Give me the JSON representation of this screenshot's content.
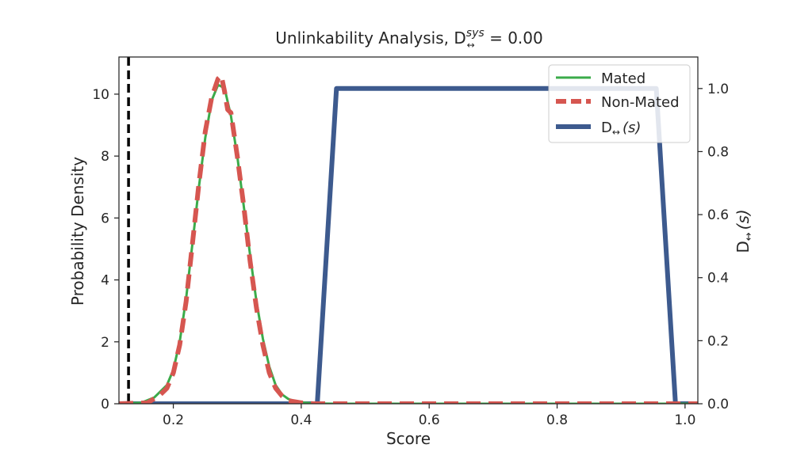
{
  "chart_data": {
    "type": "line",
    "title": "Unlinkability Analysis, D",
    "title_super": "sys",
    "title_sub": "↔",
    "title_value": " = 0.00",
    "xlabel": "Score",
    "ylabel": "Probability Density",
    "y2label": "D",
    "y2label_sub": "↔",
    "y2label_arg": "(s)",
    "xlim": [
      0.115,
      1.02
    ],
    "ylim": [
      0,
      11.2
    ],
    "y2lim": [
      0,
      1.1
    ],
    "xticks": [
      "0.2",
      "0.4",
      "0.6",
      "0.8",
      "1.0"
    ],
    "xtick_values": [
      0.2,
      0.4,
      0.6,
      0.8,
      1.0
    ],
    "yticks": [
      "0",
      "2",
      "4",
      "6",
      "8",
      "10"
    ],
    "ytick_values": [
      0,
      2,
      4,
      6,
      8,
      10
    ],
    "y2ticks": [
      "0.0",
      "0.2",
      "0.4",
      "0.6",
      "0.8",
      "1.0"
    ],
    "y2tick_values": [
      0.0,
      0.2,
      0.4,
      0.6,
      0.8,
      1.0
    ],
    "threshold_x": 0.13,
    "grid": false,
    "legend_position": "top-right",
    "series": [
      {
        "name": "Mated",
        "axis": "left",
        "color": "#3bab4a",
        "style": "solid",
        "x": [
          0.115,
          0.15,
          0.17,
          0.19,
          0.2,
          0.21,
          0.22,
          0.23,
          0.24,
          0.25,
          0.26,
          0.27,
          0.28,
          0.29,
          0.3,
          0.31,
          0.32,
          0.33,
          0.34,
          0.35,
          0.36,
          0.37,
          0.38,
          0.39,
          0.4,
          0.42,
          0.45,
          1.02
        ],
        "y": [
          0,
          0.03,
          0.2,
          0.6,
          1.1,
          2.0,
          3.4,
          5.2,
          7.0,
          8.6,
          9.8,
          10.3,
          10.2,
          9.3,
          8.0,
          6.4,
          4.8,
          3.3,
          2.1,
          1.2,
          0.6,
          0.3,
          0.15,
          0.08,
          0.04,
          0.01,
          0.0,
          0.0
        ]
      },
      {
        "name": "Non-Mated",
        "axis": "left",
        "color": "#d65650",
        "style": "dashed",
        "x": [
          0.115,
          0.16,
          0.18,
          0.19,
          0.2,
          0.21,
          0.22,
          0.23,
          0.24,
          0.25,
          0.26,
          0.27,
          0.275,
          0.28,
          0.285,
          0.29,
          0.3,
          0.31,
          0.32,
          0.33,
          0.34,
          0.35,
          0.36,
          0.37,
          0.38,
          0.4,
          0.42,
          1.02
        ],
        "y": [
          0,
          0.03,
          0.3,
          0.5,
          1.0,
          1.9,
          3.3,
          5.2,
          7.1,
          8.8,
          9.9,
          10.5,
          10.6,
          10.1,
          9.5,
          9.4,
          8.0,
          6.4,
          4.6,
          3.1,
          1.9,
          1.0,
          0.5,
          0.25,
          0.1,
          0.03,
          0.0,
          0.0
        ]
      },
      {
        "name": "D",
        "name_sub": "↔",
        "name_arg": "(s)",
        "axis": "right",
        "color": "#3d5a8e",
        "style": "solid",
        "x": [
          0.115,
          0.425,
          0.455,
          0.955,
          0.985,
          1.02
        ],
        "y": [
          0.0,
          0.0,
          1.0,
          1.0,
          0.0,
          0.0
        ]
      }
    ]
  }
}
